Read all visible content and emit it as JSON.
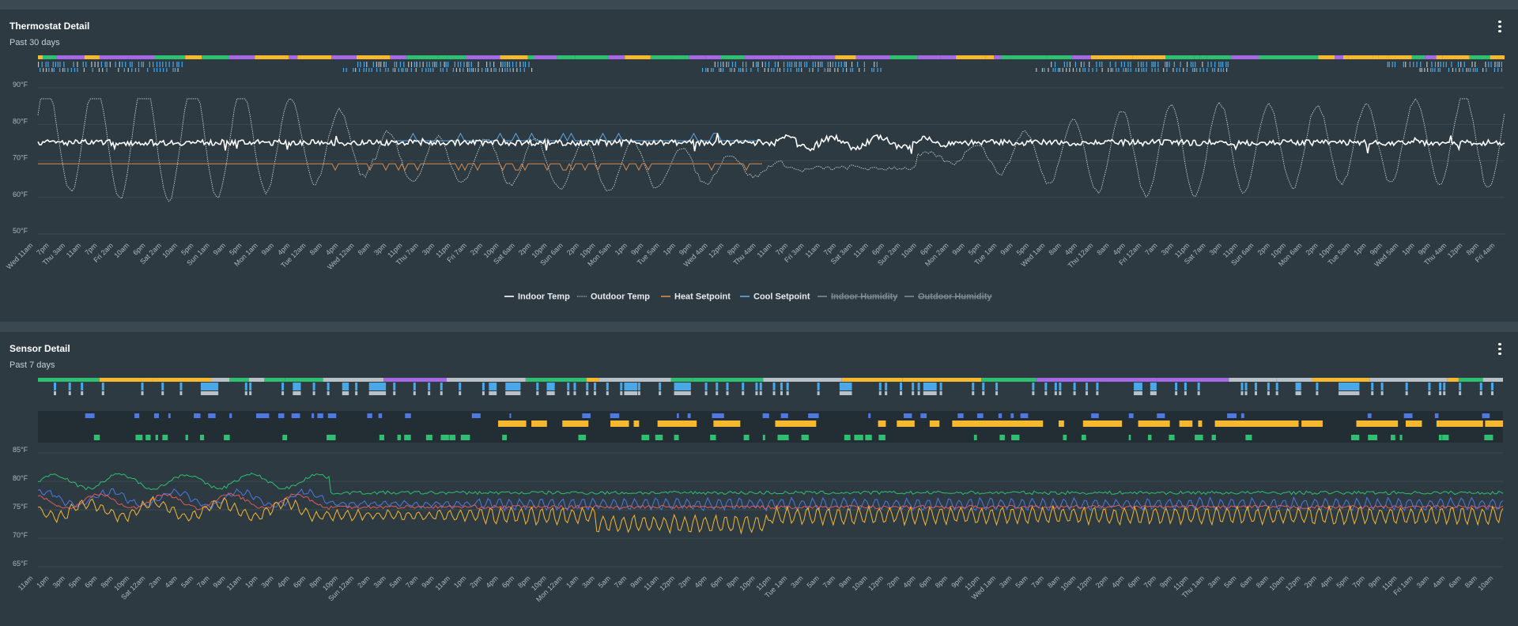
{
  "thermostat": {
    "title": "Thermostat Detail",
    "subtitle": "Past 30 days",
    "menu_icon": "more-vert-icon",
    "chart_data": {
      "type": "line",
      "y_ticks": [
        "90°F",
        "80°F",
        "70°F",
        "60°F",
        "50°F"
      ],
      "ylim": [
        50,
        90
      ],
      "x_tick_labels": [
        "Wed 11am",
        "7pm",
        "Thu 3am",
        "11am",
        "7pm",
        "Fri 2am",
        "10am",
        "6pm",
        "Sat 2am",
        "10am",
        "5pm",
        "Sun 1am",
        "9am",
        "5pm",
        "Mon 1am",
        "9am",
        "4pm",
        "Tue 12am",
        "8am",
        "4pm",
        "Wed 12am",
        "8am",
        "3pm",
        "11pm",
        "Thu 7am",
        "3pm",
        "11pm",
        "Fri 7am",
        "2pm",
        "10pm",
        "Sat 6am",
        "2pm",
        "10pm",
        "Sun 6am",
        "2pm",
        "10pm",
        "Mon 5am",
        "1pm",
        "9pm",
        "Tue 5am",
        "1pm",
        "9pm",
        "Wed 4am",
        "12pm",
        "8pm",
        "Thu 4am",
        "11am",
        "7pm",
        "Fri 3am",
        "11am",
        "7pm",
        "Sat 3am",
        "11am",
        "6pm",
        "Sun 2am",
        "10am",
        "6pm",
        "Mon 2am",
        "9am",
        "5pm",
        "Tue 1am",
        "9am",
        "5pm",
        "Wed 1am",
        "8am",
        "4pm",
        "Thu 12am",
        "8am",
        "4pm",
        "Fri 12am",
        "7am",
        "3pm",
        "11pm",
        "Sat 7am",
        "3pm",
        "11pm",
        "Sun 6am",
        "2pm",
        "10pm",
        "Mon 6am",
        "2pm",
        "10pm",
        "Tue 5am",
        "1pm",
        "9pm",
        "Wed 5am",
        "1pm",
        "9pm",
        "Thu 4am",
        "12pm",
        "8pm",
        "Fri 4am"
      ],
      "legend": [
        {
          "name": "Indoor Temp",
          "color": "#ffffff",
          "hidden": false,
          "style": "solid"
        },
        {
          "name": "Outdoor Temp",
          "color": "#c9d1d6",
          "hidden": false,
          "style": "dotted"
        },
        {
          "name": "Heat Setpoint",
          "color": "#d78a4c",
          "hidden": false,
          "style": "solid"
        },
        {
          "name": "Cool Setpoint",
          "color": "#5fa8e6",
          "hidden": false,
          "style": "solid"
        },
        {
          "name": "Indoor Humidity",
          "color": "#7d8b93",
          "hidden": true,
          "style": "solid"
        },
        {
          "name": "Outdoor Humidity",
          "color": "#7d8b93",
          "hidden": true,
          "style": "solid"
        }
      ],
      "series": [
        {
          "name": "Indoor Temp",
          "baseline": 75,
          "noise": 1.0
        },
        {
          "name": "Outdoor Temp",
          "min": 56,
          "max": 87
        },
        {
          "name": "Heat Setpoint",
          "value": 69
        },
        {
          "name": "Cool Setpoint",
          "value": 76
        }
      ],
      "mode_band_colors": [
        "#2fbf71",
        "#a569e6",
        "#f5b82e"
      ],
      "status_bar_color": "#4aa8e8",
      "grid": true
    }
  },
  "sensor": {
    "title": "Sensor Detail",
    "subtitle": "Past 7 days",
    "menu_icon": "more-vert-icon",
    "chart_data": {
      "type": "line",
      "y_ticks": [
        "85°F",
        "80°F",
        "75°F",
        "70°F",
        "65°F"
      ],
      "ylim": [
        65,
        85
      ],
      "x_tick_labels": [
        "11am",
        "1pm",
        "3pm",
        "5pm",
        "6pm",
        "8pm",
        "10pm",
        "Sat 12am",
        "2am",
        "4am",
        "5am",
        "7am",
        "9am",
        "11am",
        "1pm",
        "3pm",
        "4pm",
        "6pm",
        "8pm",
        "10pm",
        "Sun 12am",
        "2am",
        "3am",
        "5am",
        "7am",
        "9am",
        "11am",
        "1pm",
        "2pm",
        "4pm",
        "6pm",
        "8pm",
        "10pm",
        "Mon 12am",
        "1am",
        "3am",
        "5am",
        "7am",
        "9am",
        "11am",
        "12pm",
        "2pm",
        "4pm",
        "6pm",
        "8pm",
        "10pm",
        "11pm",
        "Tue 1am",
        "3am",
        "5am",
        "7am",
        "9am",
        "10am",
        "12pm",
        "2pm",
        "4pm",
        "6pm",
        "8pm",
        "9pm",
        "11pm",
        "Wed 1am",
        "3am",
        "5am",
        "7am",
        "8am",
        "10am",
        "12pm",
        "2pm",
        "4pm",
        "6pm",
        "7pm",
        "9pm",
        "11pm",
        "Thu 1am",
        "3am",
        "5am",
        "6am",
        "8am",
        "10am",
        "12pm",
        "2pm",
        "4pm",
        "5pm",
        "7pm",
        "9pm",
        "11pm",
        "Fri 1am",
        "3am",
        "4am",
        "6am",
        "8am",
        "10am"
      ],
      "series": [
        {
          "name": "sensor-green",
          "color": "#2fbf71",
          "baseline": 78
        },
        {
          "name": "sensor-blue",
          "color": "#4d78e6",
          "baseline": 76
        },
        {
          "name": "sensor-red",
          "color": "#e05a5a",
          "baseline": 75.5
        },
        {
          "name": "sensor-yellow",
          "color": "#f5b82e",
          "baseline": 74
        }
      ],
      "mode_band_colors": [
        "#f5b82e",
        "#b9c1c6",
        "#2fbf71",
        "#a569e6"
      ],
      "occupancy_colors": [
        "#4d78e6",
        "#f5b82e",
        "#2fbf71"
      ],
      "grid": true
    }
  }
}
